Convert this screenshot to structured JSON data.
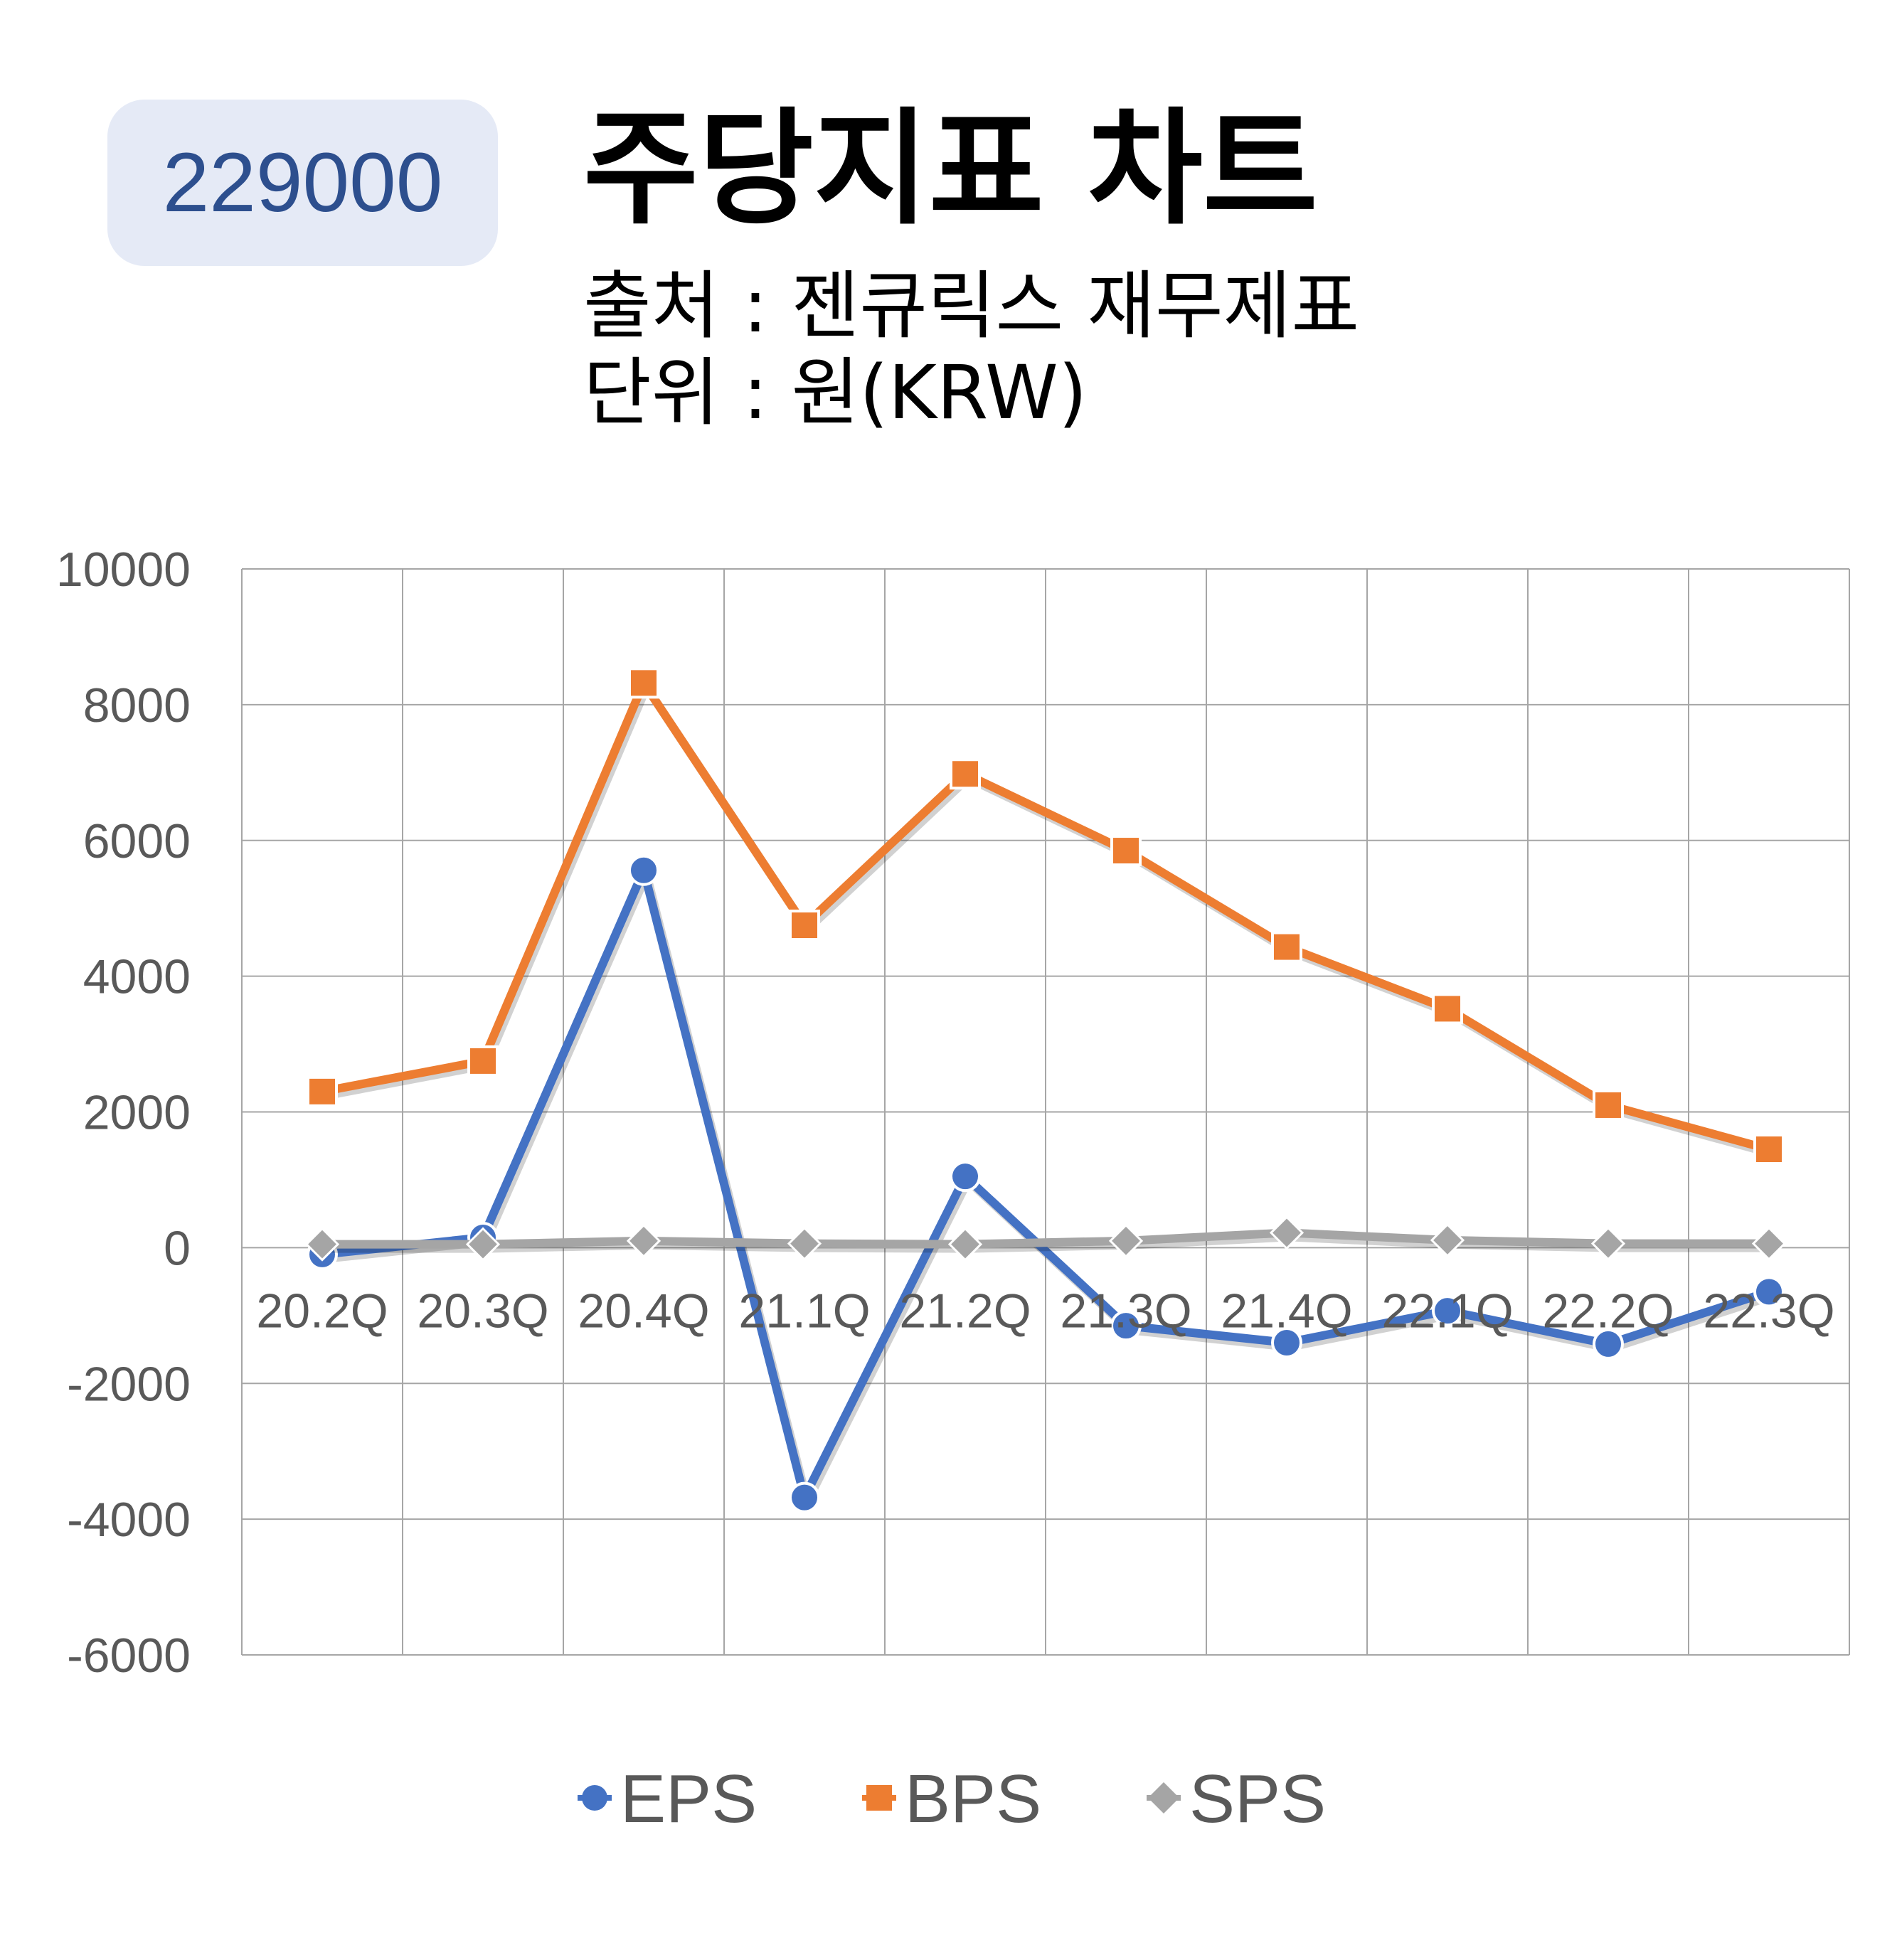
{
  "badge": {
    "code": "229000"
  },
  "header": {
    "title": "주당지표 차트",
    "source": "출처 : 젠큐릭스 재무제표",
    "unit": "단위 : 원(KRW)"
  },
  "colors": {
    "EPS": "#4472c4",
    "BPS": "#ed7d31",
    "SPS": "#a5a5a5",
    "badge_bg": "#e5eaf6",
    "badge_text": "#2d4f8e"
  },
  "chart_data": {
    "type": "line",
    "title": "주당지표 차트",
    "categories": [
      "20.2Q",
      "20.3Q",
      "20.4Q",
      "21.1Q",
      "21.2Q",
      "21.3Q",
      "21.4Q",
      "22.1Q",
      "22.2Q",
      "22.3Q"
    ],
    "ylim": [
      -6000,
      10000
    ],
    "yticks": [
      10000,
      8000,
      6000,
      4000,
      2000,
      0,
      -2000,
      -4000,
      -6000
    ],
    "grid": true,
    "legend_position": "bottom",
    "series": [
      {
        "name": "EPS",
        "marker": "circle",
        "values": [
          -100,
          150,
          5560,
          -3680,
          1050,
          -1150,
          -1400,
          -930,
          -1420,
          -650
        ]
      },
      {
        "name": "BPS",
        "marker": "square",
        "values": [
          2300,
          2750,
          8320,
          4750,
          6980,
          5850,
          4430,
          3520,
          2100,
          1450
        ]
      },
      {
        "name": "SPS",
        "marker": "diamond",
        "values": [
          50,
          50,
          100,
          60,
          50,
          100,
          220,
          110,
          60,
          60
        ]
      }
    ]
  }
}
